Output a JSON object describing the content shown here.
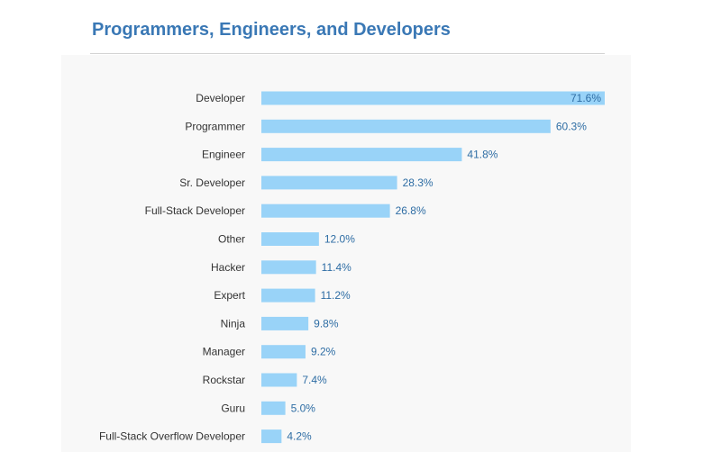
{
  "header": {
    "title": "Programmers, Engineers, and Developers"
  },
  "chart_data": {
    "type": "bar",
    "orientation": "horizontal",
    "categories": [
      "Developer",
      "Programmer",
      "Engineer",
      "Sr. Developer",
      "Full-Stack Developer",
      "Other",
      "Hacker",
      "Expert",
      "Ninja",
      "Manager",
      "Rockstar",
      "Guru",
      "Full-Stack Overflow Developer"
    ],
    "values": [
      71.6,
      60.3,
      41.8,
      28.3,
      26.8,
      12.0,
      11.4,
      11.2,
      9.8,
      9.2,
      7.4,
      5.0,
      4.2
    ],
    "value_labels": [
      "71.6%",
      "60.3%",
      "41.8%",
      "28.3%",
      "26.8%",
      "12.0%",
      "11.4%",
      "11.2%",
      "9.8%",
      "9.2%",
      "7.4%",
      "5.0%",
      "4.2%"
    ],
    "title": "Programmers, Engineers, and Developers",
    "xlabel": "",
    "ylabel": "",
    "xlim": [
      0,
      71.6
    ],
    "grid": false,
    "bar_color": "#99d3f8",
    "label_color": "#2e6da4",
    "category_color": "#333333"
  }
}
